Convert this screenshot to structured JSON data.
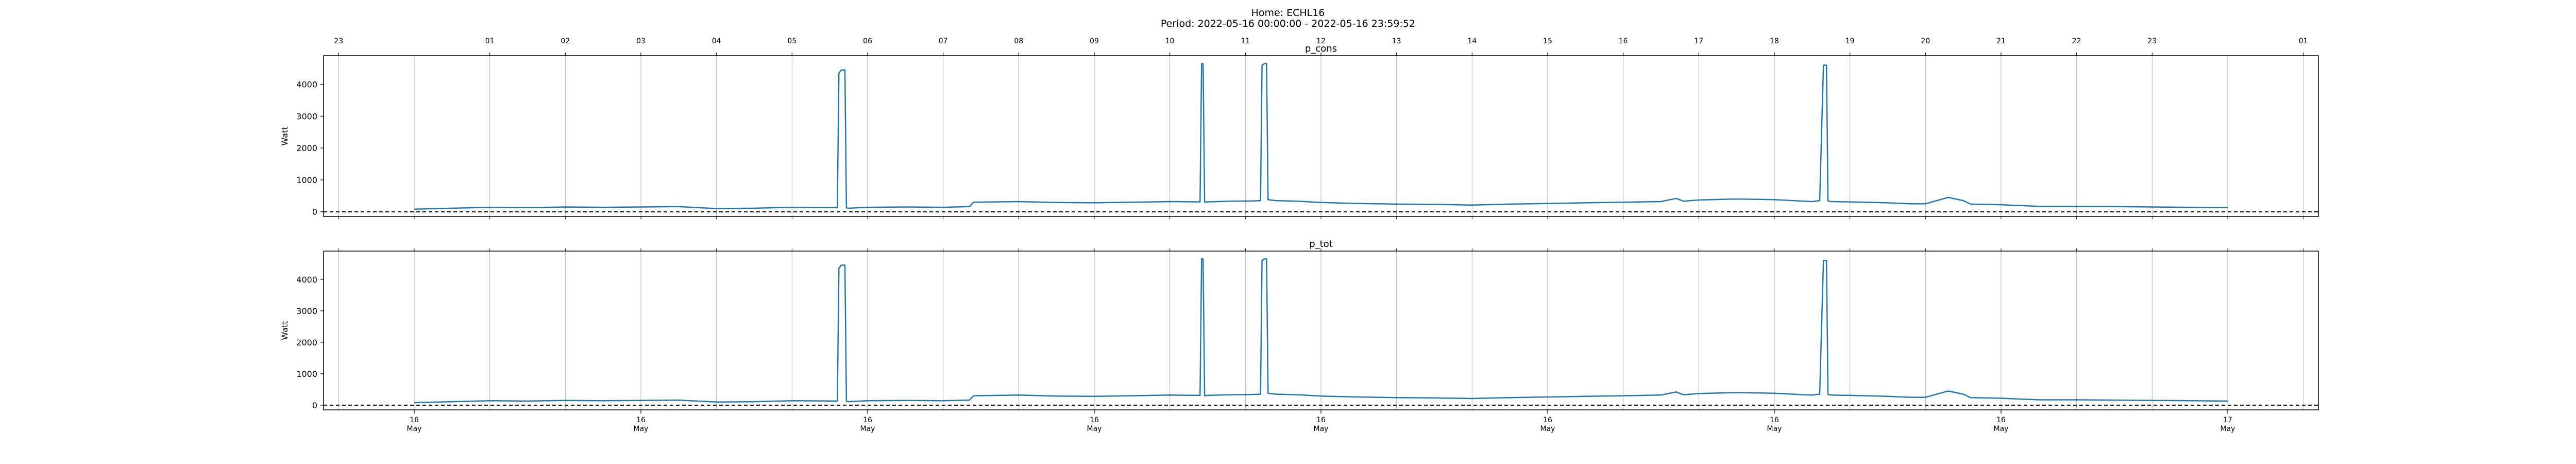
{
  "figure": {
    "title_line1": "Home: ECHL16",
    "title_line2": "Period: 2022-05-16 00:00:00 - 2022-05-16 23:59:52"
  },
  "colors": {
    "line": "#1f77b4",
    "grid": "#b0b0b0",
    "zero_line": "#000000"
  },
  "chart_data": [
    {
      "type": "line",
      "title": "p_cons",
      "ylabel": "Watt",
      "xlabel": "",
      "ylim": [
        -150,
        4900
      ],
      "xlim": [
        -1.2,
        25.2
      ],
      "yticks": [
        0,
        1000,
        2000,
        3000,
        4000
      ],
      "top_hour_ticks": [
        {
          "x": -1.0,
          "label": "23"
        },
        {
          "x": 1.0,
          "label": "01"
        },
        {
          "x": 2.0,
          "label": "02"
        },
        {
          "x": 3.0,
          "label": "03"
        },
        {
          "x": 4.0,
          "label": "04"
        },
        {
          "x": 5.0,
          "label": "05"
        },
        {
          "x": 6.0,
          "label": "06"
        },
        {
          "x": 7.0,
          "label": "07"
        },
        {
          "x": 8.0,
          "label": "08"
        },
        {
          "x": 9.0,
          "label": "09"
        },
        {
          "x": 10.0,
          "label": "10"
        },
        {
          "x": 11.0,
          "label": "11"
        },
        {
          "x": 12.0,
          "label": "12"
        },
        {
          "x": 13.0,
          "label": "13"
        },
        {
          "x": 14.0,
          "label": "14"
        },
        {
          "x": 15.0,
          "label": "15"
        },
        {
          "x": 16.0,
          "label": "16"
        },
        {
          "x": 17.0,
          "label": "17"
        },
        {
          "x": 18.0,
          "label": "18"
        },
        {
          "x": 19.0,
          "label": "19"
        },
        {
          "x": 20.0,
          "label": "20"
        },
        {
          "x": 21.0,
          "label": "21"
        },
        {
          "x": 22.0,
          "label": "22"
        },
        {
          "x": 23.0,
          "label": "23"
        },
        {
          "x": 25.0,
          "label": "01"
        }
      ],
      "zero_line": true,
      "grid": "vertical",
      "series": [
        {
          "x": [
            0.0,
            0.5,
            1.0,
            1.5,
            2.0,
            2.5,
            3.0,
            3.5,
            4.0,
            4.5,
            5.0,
            5.6,
            5.62,
            5.65,
            5.7,
            5.72,
            5.75,
            6.0,
            6.5,
            7.0,
            7.35,
            7.4,
            8.0,
            8.5,
            9.0,
            9.5,
            10.0,
            10.4,
            10.42,
            10.44,
            10.46,
            10.5,
            10.8,
            11.1,
            11.2,
            11.22,
            11.25,
            11.28,
            11.3,
            11.4,
            11.7,
            12.0,
            12.5,
            13.0,
            13.5,
            14.0,
            14.5,
            15.0,
            15.5,
            16.0,
            16.5,
            16.7,
            16.8,
            17.0,
            17.5,
            18.0,
            18.4,
            18.5,
            18.6,
            18.65,
            18.67,
            18.69,
            18.71,
            18.75,
            19.0,
            19.5,
            19.8,
            20.0,
            20.3,
            20.5,
            20.6,
            21.0,
            21.2,
            21.5,
            22.0,
            22.5,
            23.0,
            23.5,
            24.0
          ],
          "y": [
            80,
            110,
            140,
            130,
            150,
            140,
            150,
            160,
            100,
            110,
            140,
            130,
            4350,
            4450,
            4450,
            120,
            110,
            140,
            150,
            140,
            160,
            300,
            320,
            290,
            280,
            300,
            320,
            310,
            4650,
            4650,
            300,
            310,
            330,
            340,
            350,
            4600,
            4650,
            4650,
            380,
            350,
            330,
            290,
            260,
            240,
            230,
            210,
            240,
            260,
            280,
            300,
            320,
            420,
            330,
            370,
            400,
            380,
            330,
            320,
            350,
            4600,
            4600,
            4600,
            340,
            320,
            310,
            280,
            250,
            250,
            450,
            350,
            240,
            220,
            200,
            170,
            170,
            160,
            150,
            140,
            130
          ]
        }
      ]
    },
    {
      "type": "line",
      "title": "p_tot",
      "ylabel": "Watt",
      "xlabel": "",
      "ylim": [
        -150,
        4900
      ],
      "xlim": [
        -1.2,
        25.2
      ],
      "yticks": [
        0,
        1000,
        2000,
        3000,
        4000
      ],
      "bottom_ticks": [
        {
          "x": 0.0,
          "label1": "16",
          "label2": "May"
        },
        {
          "x": 3.0,
          "label1": "16",
          "label2": "May"
        },
        {
          "x": 6.0,
          "label1": "16",
          "label2": "May"
        },
        {
          "x": 9.0,
          "label1": "16",
          "label2": "May"
        },
        {
          "x": 12.0,
          "label1": "16",
          "label2": "May"
        },
        {
          "x": 15.0,
          "label1": "16",
          "label2": "May"
        },
        {
          "x": 18.0,
          "label1": "16",
          "label2": "May"
        },
        {
          "x": 21.0,
          "label1": "16",
          "label2": "May"
        },
        {
          "x": 24.0,
          "label1": "17",
          "label2": "May"
        }
      ],
      "zero_line": true,
      "grid": "vertical",
      "series": [
        {
          "x": [
            0.0,
            0.5,
            1.0,
            1.5,
            2.0,
            2.5,
            3.0,
            3.5,
            4.0,
            4.5,
            5.0,
            5.6,
            5.62,
            5.65,
            5.7,
            5.72,
            5.75,
            6.0,
            6.5,
            7.0,
            7.35,
            7.4,
            8.0,
            8.5,
            9.0,
            9.5,
            10.0,
            10.4,
            10.42,
            10.44,
            10.46,
            10.5,
            10.8,
            11.1,
            11.2,
            11.22,
            11.25,
            11.28,
            11.3,
            11.4,
            11.7,
            12.0,
            12.5,
            13.0,
            13.5,
            14.0,
            14.5,
            15.0,
            15.5,
            16.0,
            16.5,
            16.7,
            16.8,
            17.0,
            17.5,
            18.0,
            18.4,
            18.5,
            18.6,
            18.65,
            18.67,
            18.69,
            18.71,
            18.75,
            19.0,
            19.5,
            19.8,
            20.0,
            20.3,
            20.5,
            20.6,
            21.0,
            21.2,
            21.5,
            22.0,
            22.5,
            23.0,
            23.5,
            24.0
          ],
          "y": [
            80,
            110,
            140,
            130,
            150,
            140,
            150,
            160,
            100,
            110,
            140,
            130,
            4350,
            4450,
            4450,
            120,
            110,
            140,
            150,
            140,
            160,
            300,
            320,
            290,
            280,
            300,
            320,
            310,
            4650,
            4650,
            300,
            310,
            330,
            340,
            350,
            4600,
            4650,
            4650,
            380,
            350,
            330,
            290,
            260,
            240,
            230,
            210,
            240,
            260,
            280,
            300,
            320,
            420,
            330,
            370,
            400,
            380,
            330,
            320,
            350,
            4600,
            4600,
            4600,
            340,
            320,
            310,
            280,
            250,
            250,
            450,
            350,
            240,
            220,
            200,
            170,
            170,
            160,
            150,
            140,
            130
          ]
        }
      ]
    }
  ]
}
